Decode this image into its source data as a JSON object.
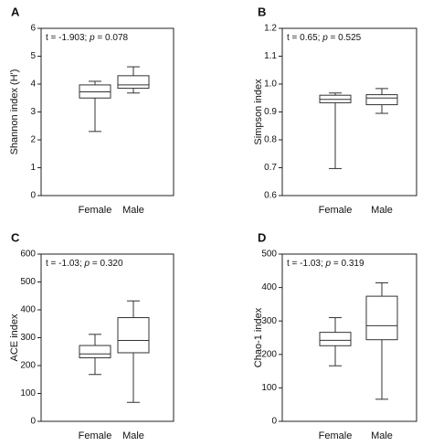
{
  "chart_data": [
    {
      "type": "box",
      "panel_letter": "A",
      "annotation": "t = -1.903; p = 0.078",
      "ylabel": "Shannon index (H')",
      "ylim": [
        0,
        6
      ],
      "yticks": [
        0,
        1,
        2,
        3,
        4,
        5,
        6
      ],
      "categories": [
        "Female",
        "Male"
      ],
      "boxes": [
        {
          "min": 2.3,
          "q1": 3.5,
          "median": 3.72,
          "q3": 3.97,
          "max": 4.1
        },
        {
          "min": 3.68,
          "q1": 3.85,
          "median": 3.97,
          "q3": 4.3,
          "max": 4.62
        }
      ]
    },
    {
      "type": "box",
      "panel_letter": "B",
      "annotation": "t = 0.65; p = 0.525",
      "ylabel": "Simpson index",
      "ylim": [
        0.6,
        1.2
      ],
      "yticks": [
        0.6,
        0.7,
        0.8,
        0.9,
        1.0,
        1.1,
        1.2
      ],
      "categories": [
        "Female",
        "Male"
      ],
      "boxes": [
        {
          "min": 0.697,
          "q1": 0.933,
          "median": 0.945,
          "q3": 0.96,
          "max": 0.968
        },
        {
          "min": 0.895,
          "q1": 0.926,
          "median": 0.95,
          "q3": 0.962,
          "max": 0.984
        }
      ]
    },
    {
      "type": "box",
      "panel_letter": "C",
      "annotation": "t = -1.03; p = 0.320",
      "ylabel": "ACE index",
      "ylim": [
        0,
        600
      ],
      "yticks": [
        0,
        100,
        200,
        300,
        400,
        500,
        600
      ],
      "categories": [
        "Female",
        "Male"
      ],
      "boxes": [
        {
          "min": 168,
          "q1": 228,
          "median": 242,
          "q3": 272,
          "max": 312
        },
        {
          "min": 68,
          "q1": 246,
          "median": 290,
          "q3": 372,
          "max": 432
        }
      ]
    },
    {
      "type": "box",
      "panel_letter": "D",
      "annotation": "t = -1.03; p = 0.319",
      "ylabel": "Chao-1 index",
      "ylim": [
        0,
        500
      ],
      "yticks": [
        0,
        100,
        200,
        300,
        400,
        500
      ],
      "categories": [
        "Female",
        "Male"
      ],
      "boxes": [
        {
          "min": 166,
          "q1": 226,
          "median": 242,
          "q3": 266,
          "max": 310
        },
        {
          "min": 66,
          "q1": 244,
          "median": 286,
          "q3": 374,
          "max": 414
        }
      ]
    }
  ]
}
